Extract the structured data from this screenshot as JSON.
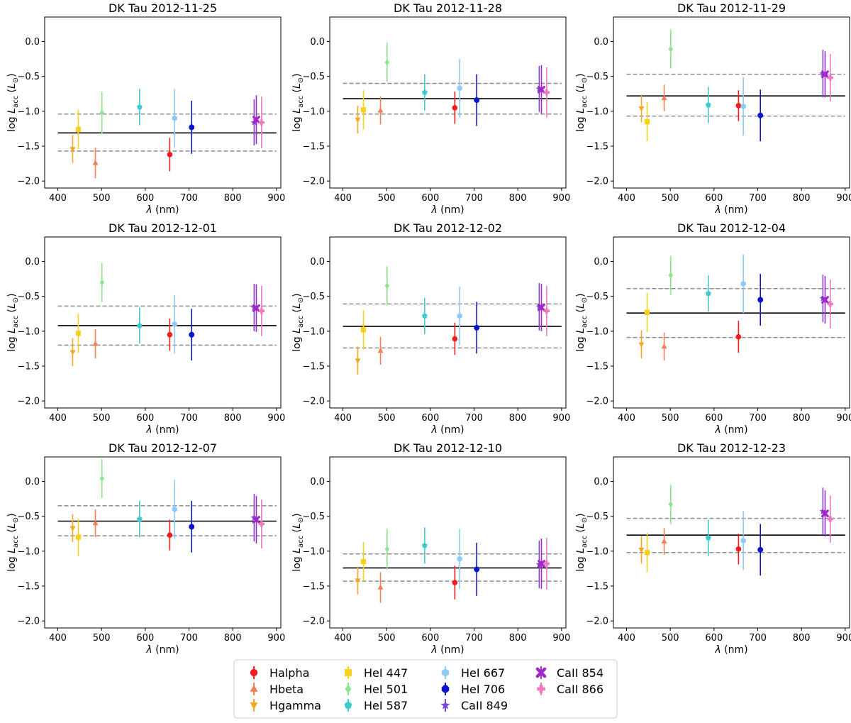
{
  "figure": {
    "xlabel": "λ (nm)",
    "ylabel": "log L_acc (L_⊙)",
    "xlim": [
      370,
      910
    ],
    "ylim": [
      -2.1,
      0.35
    ],
    "xticks": [
      400,
      500,
      600,
      700,
      800,
      900
    ],
    "yticks": [
      0.0,
      -0.5,
      -1.0,
      -1.5,
      -2.0
    ],
    "ytick_labels": [
      "0.0",
      "−0.5",
      "−1.0",
      "−1.5",
      "−2.0"
    ]
  },
  "legend": {
    "items": [
      {
        "label": "Halpha",
        "color": "#ee1c1c",
        "marker": "circle"
      },
      {
        "label": "Hbeta",
        "color": "#f57f55",
        "marker": "triangle-up"
      },
      {
        "label": "Hgamma",
        "color": "#f5a623",
        "marker": "triangle-down"
      },
      {
        "label": "HeI 447",
        "color": "#f7d117",
        "marker": "square"
      },
      {
        "label": "HeI 501",
        "color": "#8ee68a",
        "marker": "diamond"
      },
      {
        "label": "HeI 587",
        "color": "#3fcad0",
        "marker": "pentagon"
      },
      {
        "label": "HeI 667",
        "color": "#8fcaf7",
        "marker": "hexagon"
      },
      {
        "label": "HeI 706",
        "color": "#0d17c9",
        "marker": "octagon"
      },
      {
        "label": "CaII 849",
        "color": "#7845d6",
        "marker": "star"
      },
      {
        "label": "CaII 854",
        "color": "#a128c8",
        "marker": "x-filled"
      },
      {
        "label": "CaII 866",
        "color": "#f077c2",
        "marker": "plus-filled"
      }
    ]
  },
  "chart_data": [
    {
      "type": "scatter",
      "title": "DK Tau 2012-11-25",
      "mean": -1.31,
      "band": [
        -1.57,
        -1.04
      ],
      "series": [
        {
          "name": "Halpha",
          "x": 656,
          "y": -1.62,
          "err": 0.24
        },
        {
          "name": "Hbeta",
          "x": 486,
          "y": -1.74,
          "err": 0.22
        },
        {
          "name": "Hgamma",
          "x": 434,
          "y": -1.54,
          "err": 0.2
        },
        {
          "name": "HeI 447",
          "x": 447,
          "y": -1.26,
          "err": 0.28
        },
        {
          "name": "HeI 501",
          "x": 501,
          "y": -1.02,
          "err": 0.3
        },
        {
          "name": "HeI 587",
          "x": 587,
          "y": -0.94,
          "err": 0.26
        },
        {
          "name": "HeI 667",
          "x": 667,
          "y": -1.1,
          "err": 0.42
        },
        {
          "name": "HeI 706",
          "x": 706,
          "y": -1.23,
          "err": 0.38
        },
        {
          "name": "CaII 849",
          "x": 849,
          "y": -1.16,
          "err": 0.33
        },
        {
          "name": "CaII 854",
          "x": 854,
          "y": -1.12,
          "err": 0.35
        },
        {
          "name": "CaII 866",
          "x": 866,
          "y": -1.16,
          "err": 0.37
        }
      ]
    },
    {
      "type": "scatter",
      "title": "DK Tau 2012-11-28",
      "mean": -0.82,
      "band": [
        -1.04,
        -0.6
      ],
      "series": [
        {
          "name": "Halpha",
          "x": 656,
          "y": -0.95,
          "err": 0.23
        },
        {
          "name": "Hbeta",
          "x": 486,
          "y": -0.99,
          "err": 0.2
        },
        {
          "name": "Hgamma",
          "x": 434,
          "y": -1.12,
          "err": 0.2
        },
        {
          "name": "HeI 447",
          "x": 447,
          "y": -0.98,
          "err": 0.28
        },
        {
          "name": "HeI 501",
          "x": 501,
          "y": -0.3,
          "err": 0.28
        },
        {
          "name": "HeI 587",
          "x": 587,
          "y": -0.73,
          "err": 0.26
        },
        {
          "name": "HeI 667",
          "x": 667,
          "y": -0.67,
          "err": 0.42
        },
        {
          "name": "HeI 706",
          "x": 706,
          "y": -0.84,
          "err": 0.37
        },
        {
          "name": "CaII 849",
          "x": 849,
          "y": -0.68,
          "err": 0.33
        },
        {
          "name": "CaII 854",
          "x": 854,
          "y": -0.69,
          "err": 0.35
        },
        {
          "name": "CaII 866",
          "x": 866,
          "y": -0.73,
          "err": 0.36
        }
      ]
    },
    {
      "type": "scatter",
      "title": "DK Tau 2012-11-29",
      "mean": -0.78,
      "band": [
        -1.07,
        -0.47
      ],
      "series": [
        {
          "name": "Halpha",
          "x": 656,
          "y": -0.92,
          "err": 0.22
        },
        {
          "name": "Hbeta",
          "x": 486,
          "y": -0.81,
          "err": 0.19
        },
        {
          "name": "Hgamma",
          "x": 434,
          "y": -0.96,
          "err": 0.2
        },
        {
          "name": "HeI 447",
          "x": 447,
          "y": -1.15,
          "err": 0.28
        },
        {
          "name": "HeI 501",
          "x": 501,
          "y": -0.11,
          "err": 0.28
        },
        {
          "name": "HeI 587",
          "x": 587,
          "y": -0.91,
          "err": 0.26
        },
        {
          "name": "HeI 667",
          "x": 667,
          "y": -0.93,
          "err": 0.42
        },
        {
          "name": "HeI 706",
          "x": 706,
          "y": -1.06,
          "err": 0.37
        },
        {
          "name": "CaII 849",
          "x": 849,
          "y": -0.46,
          "err": 0.34
        },
        {
          "name": "CaII 854",
          "x": 854,
          "y": -0.47,
          "err": 0.33
        },
        {
          "name": "CaII 866",
          "x": 866,
          "y": -0.52,
          "err": 0.34
        }
      ]
    },
    {
      "type": "scatter",
      "title": "DK Tau 2012-12-01",
      "mean": -0.92,
      "band": [
        -1.2,
        -0.64
      ],
      "series": [
        {
          "name": "Halpha",
          "x": 656,
          "y": -1.05,
          "err": 0.23
        },
        {
          "name": "Hbeta",
          "x": 486,
          "y": -1.18,
          "err": 0.21
        },
        {
          "name": "Hgamma",
          "x": 434,
          "y": -1.3,
          "err": 0.2
        },
        {
          "name": "HeI 447",
          "x": 447,
          "y": -1.03,
          "err": 0.28
        },
        {
          "name": "HeI 501",
          "x": 501,
          "y": -0.3,
          "err": 0.28
        },
        {
          "name": "HeI 587",
          "x": 587,
          "y": -0.92,
          "err": 0.26
        },
        {
          "name": "HeI 667",
          "x": 667,
          "y": -0.9,
          "err": 0.42
        },
        {
          "name": "HeI 706",
          "x": 706,
          "y": -1.05,
          "err": 0.37
        },
        {
          "name": "CaII 849",
          "x": 849,
          "y": -0.66,
          "err": 0.34
        },
        {
          "name": "CaII 854",
          "x": 854,
          "y": -0.67,
          "err": 0.34
        },
        {
          "name": "CaII 866",
          "x": 866,
          "y": -0.71,
          "err": 0.36
        }
      ]
    },
    {
      "type": "scatter",
      "title": "DK Tau 2012-12-02",
      "mean": -0.93,
      "band": [
        -1.24,
        -0.61
      ],
      "series": [
        {
          "name": "Halpha",
          "x": 656,
          "y": -1.11,
          "err": 0.23
        },
        {
          "name": "Hbeta",
          "x": 486,
          "y": -1.28,
          "err": 0.2
        },
        {
          "name": "Hgamma",
          "x": 434,
          "y": -1.42,
          "err": 0.2
        },
        {
          "name": "HeI 447",
          "x": 447,
          "y": -0.98,
          "err": 0.28
        },
        {
          "name": "HeI 501",
          "x": 501,
          "y": -0.35,
          "err": 0.28
        },
        {
          "name": "HeI 587",
          "x": 587,
          "y": -0.78,
          "err": 0.26
        },
        {
          "name": "HeI 667",
          "x": 667,
          "y": -0.78,
          "err": 0.42
        },
        {
          "name": "HeI 706",
          "x": 706,
          "y": -0.95,
          "err": 0.37
        },
        {
          "name": "CaII 849",
          "x": 849,
          "y": -0.65,
          "err": 0.34
        },
        {
          "name": "CaII 854",
          "x": 854,
          "y": -0.66,
          "err": 0.34
        },
        {
          "name": "CaII 866",
          "x": 866,
          "y": -0.71,
          "err": 0.36
        }
      ]
    },
    {
      "type": "scatter",
      "title": "DK Tau 2012-12-04",
      "mean": -0.74,
      "band": [
        -1.09,
        -0.39
      ],
      "series": [
        {
          "name": "Halpha",
          "x": 656,
          "y": -1.08,
          "err": 0.23
        },
        {
          "name": "Hbeta",
          "x": 486,
          "y": -1.22,
          "err": 0.2
        },
        {
          "name": "Hgamma",
          "x": 434,
          "y": -1.19,
          "err": 0.2
        },
        {
          "name": "HeI 447",
          "x": 447,
          "y": -0.73,
          "err": 0.28
        },
        {
          "name": "HeI 501",
          "x": 501,
          "y": -0.2,
          "err": 0.28
        },
        {
          "name": "HeI 587",
          "x": 587,
          "y": -0.46,
          "err": 0.26
        },
        {
          "name": "HeI 667",
          "x": 667,
          "y": -0.32,
          "err": 0.42
        },
        {
          "name": "HeI 706",
          "x": 706,
          "y": -0.55,
          "err": 0.37
        },
        {
          "name": "CaII 849",
          "x": 849,
          "y": -0.53,
          "err": 0.34
        },
        {
          "name": "CaII 854",
          "x": 854,
          "y": -0.55,
          "err": 0.34
        },
        {
          "name": "CaII 866",
          "x": 866,
          "y": -0.61,
          "err": 0.35
        }
      ]
    },
    {
      "type": "scatter",
      "title": "DK Tau 2012-12-07",
      "mean": -0.57,
      "band": [
        -0.78,
        -0.35
      ],
      "series": [
        {
          "name": "Halpha",
          "x": 656,
          "y": -0.77,
          "err": 0.22
        },
        {
          "name": "Hbeta",
          "x": 486,
          "y": -0.6,
          "err": 0.2
        },
        {
          "name": "Hgamma",
          "x": 434,
          "y": -0.67,
          "err": 0.2
        },
        {
          "name": "HeI 447",
          "x": 447,
          "y": -0.8,
          "err": 0.27
        },
        {
          "name": "HeI 501",
          "x": 501,
          "y": 0.04,
          "err": 0.28
        },
        {
          "name": "HeI 587",
          "x": 587,
          "y": -0.54,
          "err": 0.26
        },
        {
          "name": "HeI 667",
          "x": 667,
          "y": -0.4,
          "err": 0.42
        },
        {
          "name": "HeI 706",
          "x": 706,
          "y": -0.65,
          "err": 0.37
        },
        {
          "name": "CaII 849",
          "x": 849,
          "y": -0.52,
          "err": 0.34
        },
        {
          "name": "CaII 854",
          "x": 854,
          "y": -0.55,
          "err": 0.34
        },
        {
          "name": "CaII 866",
          "x": 866,
          "y": -0.61,
          "err": 0.35
        }
      ]
    },
    {
      "type": "scatter",
      "title": "DK Tau 2012-12-10",
      "mean": -1.24,
      "band": [
        -1.43,
        -1.04
      ],
      "series": [
        {
          "name": "Halpha",
          "x": 656,
          "y": -1.45,
          "err": 0.24
        },
        {
          "name": "Hbeta",
          "x": 486,
          "y": -1.52,
          "err": 0.22
        },
        {
          "name": "Hgamma",
          "x": 434,
          "y": -1.42,
          "err": 0.2
        },
        {
          "name": "HeI 447",
          "x": 447,
          "y": -1.15,
          "err": 0.28
        },
        {
          "name": "HeI 501",
          "x": 501,
          "y": -0.97,
          "err": 0.29
        },
        {
          "name": "HeI 587",
          "x": 587,
          "y": -0.92,
          "err": 0.26
        },
        {
          "name": "HeI 667",
          "x": 667,
          "y": -1.11,
          "err": 0.43
        },
        {
          "name": "HeI 706",
          "x": 706,
          "y": -1.26,
          "err": 0.38
        },
        {
          "name": "CaII 849",
          "x": 849,
          "y": -1.19,
          "err": 0.34
        },
        {
          "name": "CaII 854",
          "x": 854,
          "y": -1.18,
          "err": 0.36
        },
        {
          "name": "CaII 866",
          "x": 866,
          "y": -1.18,
          "err": 0.37
        }
      ]
    },
    {
      "type": "scatter",
      "title": "DK Tau 2012-12-23",
      "mean": -0.77,
      "band": [
        -1.02,
        -0.53
      ],
      "series": [
        {
          "name": "Halpha",
          "x": 656,
          "y": -0.97,
          "err": 0.22
        },
        {
          "name": "Hbeta",
          "x": 486,
          "y": -0.86,
          "err": 0.19
        },
        {
          "name": "Hgamma",
          "x": 434,
          "y": -0.98,
          "err": 0.2
        },
        {
          "name": "HeI 447",
          "x": 447,
          "y": -1.02,
          "err": 0.28
        },
        {
          "name": "HeI 501",
          "x": 501,
          "y": -0.33,
          "err": 0.28
        },
        {
          "name": "HeI 587",
          "x": 587,
          "y": -0.81,
          "err": 0.26
        },
        {
          "name": "HeI 667",
          "x": 667,
          "y": -0.85,
          "err": 0.42
        },
        {
          "name": "HeI 706",
          "x": 706,
          "y": -0.98,
          "err": 0.37
        },
        {
          "name": "CaII 849",
          "x": 849,
          "y": -0.43,
          "err": 0.34
        },
        {
          "name": "CaII 854",
          "x": 854,
          "y": -0.46,
          "err": 0.33
        },
        {
          "name": "CaII 866",
          "x": 866,
          "y": -0.54,
          "err": 0.34
        }
      ]
    }
  ]
}
